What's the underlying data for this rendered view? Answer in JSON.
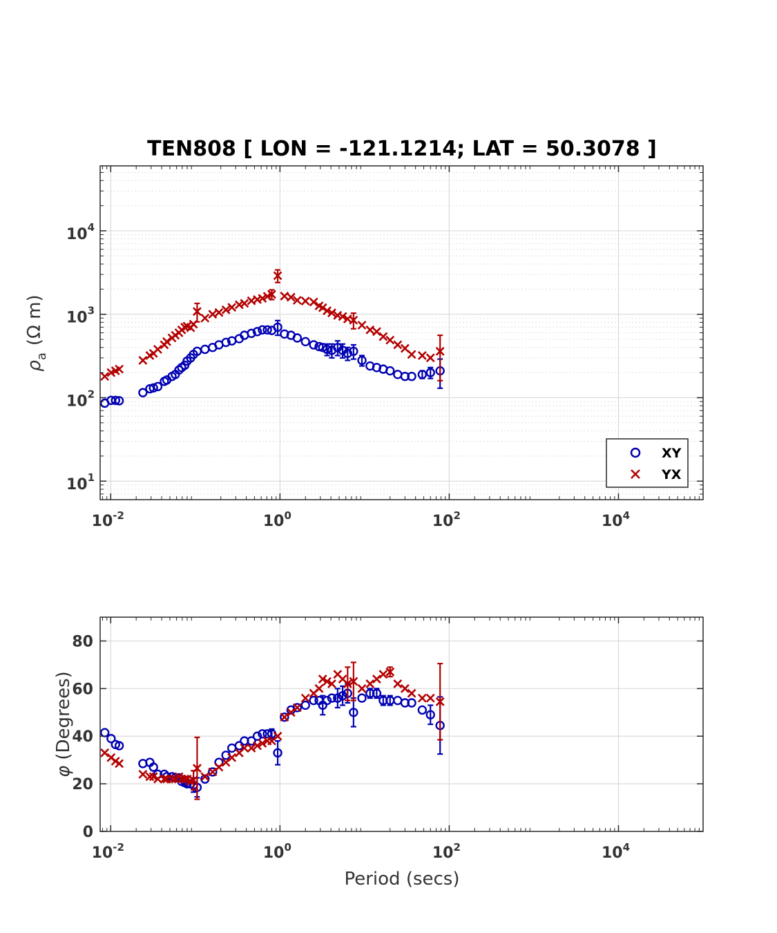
{
  "figure_title": "TEN808 [ LON = -121.1214; LAT = 50.3078 ]",
  "colors": {
    "xy": "#0000b3",
    "yx": "#b30000",
    "grid": "#d9d9d9",
    "axis": "#262626"
  },
  "chart_data": [
    {
      "type": "scatter",
      "name": "apparent-resistivity",
      "xscale": "log",
      "yscale": "log",
      "xlim": [
        0.0075,
        100000
      ],
      "ylim": [
        6,
        60000
      ],
      "xticks": [
        0.01,
        1,
        100,
        10000
      ],
      "xtick_labels": [
        {
          "base": "10",
          "exp": "-2"
        },
        {
          "base": "10",
          "exp": "0"
        },
        {
          "base": "10",
          "exp": "2"
        },
        {
          "base": "10",
          "exp": "4"
        }
      ],
      "yticks": [
        10,
        100,
        1000,
        10000
      ],
      "ytick_labels": [
        {
          "base": "10",
          "exp": "1"
        },
        {
          "base": "10",
          "exp": "2"
        },
        {
          "base": "10",
          "exp": "3"
        },
        {
          "base": "10",
          "exp": "4"
        }
      ],
      "ylabel": {
        "main": "ρ",
        "sub": "a",
        "unit": "(Ω m)"
      },
      "xlabel": "",
      "grid": true,
      "minor_grid": true,
      "legend": {
        "position": "bottom-right",
        "entries": [
          "XY",
          "YX"
        ]
      },
      "series": [
        {
          "name": "XY",
          "marker": "circle",
          "color": "#0000b3",
          "x": [
            0.0085,
            0.0101,
            0.0114,
            0.0126,
            0.024,
            0.029,
            0.032,
            0.036,
            0.043,
            0.046,
            0.053,
            0.058,
            0.064,
            0.069,
            0.075,
            0.08,
            0.088,
            0.095,
            0.105,
            0.13,
            0.16,
            0.19,
            0.23,
            0.27,
            0.33,
            0.38,
            0.46,
            0.54,
            0.62,
            0.71,
            0.8,
            0.94,
            1.13,
            1.35,
            1.6,
            2.0,
            2.5,
            2.9,
            3.2,
            3.6,
            4.1,
            4.8,
            5.5,
            6.3,
            7.4,
            9.3,
            11.6,
            13.9,
            16.6,
            20.0,
            24.6,
            30.0,
            36.0,
            48.0,
            60.0,
            78.0
          ],
          "y": [
            86,
            93,
            93,
            92,
            115,
            128,
            131,
            136,
            157,
            163,
            180,
            190,
            215,
            230,
            245,
            275,
            300,
            330,
            360,
            380,
            400,
            430,
            460,
            480,
            510,
            560,
            590,
            620,
            650,
            650,
            640,
            700,
            580,
            560,
            520,
            470,
            430,
            410,
            400,
            380,
            370,
            400,
            370,
            340,
            360,
            280,
            240,
            230,
            220,
            210,
            190,
            180,
            180,
            190,
            200,
            210
          ],
          "err_lo": [
            0,
            0,
            0,
            0,
            0,
            0,
            0,
            0,
            0,
            0,
            0,
            0,
            0,
            0,
            0,
            0,
            0,
            0,
            0,
            0,
            0,
            0,
            0,
            0,
            0,
            0,
            0,
            0,
            0,
            0,
            0,
            140,
            0,
            0,
            0,
            0,
            0,
            0,
            0,
            60,
            70,
            80,
            70,
            60,
            70,
            40,
            0,
            0,
            0,
            0,
            0,
            0,
            0,
            20,
            30,
            80
          ],
          "err_hi": [
            0,
            0,
            0,
            0,
            0,
            0,
            0,
            0,
            0,
            0,
            0,
            0,
            0,
            0,
            0,
            0,
            0,
            0,
            0,
            0,
            0,
            0,
            0,
            0,
            0,
            0,
            0,
            0,
            0,
            0,
            0,
            140,
            0,
            0,
            0,
            0,
            0,
            0,
            0,
            60,
            70,
            80,
            70,
            60,
            70,
            40,
            0,
            0,
            0,
            0,
            0,
            0,
            0,
            20,
            30,
            80
          ]
        },
        {
          "name": "YX",
          "marker": "x",
          "color": "#b30000",
          "x": [
            0.0085,
            0.0101,
            0.0114,
            0.0126,
            0.024,
            0.029,
            0.032,
            0.036,
            0.043,
            0.046,
            0.053,
            0.058,
            0.064,
            0.069,
            0.075,
            0.08,
            0.088,
            0.095,
            0.105,
            0.13,
            0.16,
            0.19,
            0.23,
            0.27,
            0.33,
            0.38,
            0.46,
            0.54,
            0.62,
            0.71,
            0.8,
            0.94,
            1.13,
            1.35,
            1.6,
            2.0,
            2.5,
            2.9,
            3.2,
            3.6,
            4.1,
            4.8,
            5.5,
            6.3,
            7.4,
            9.3,
            11.6,
            13.9,
            16.6,
            20.0,
            24.6,
            30.0,
            36.0,
            48.0,
            60.0,
            78.0
          ],
          "y": [
            180,
            200,
            210,
            220,
            280,
            320,
            340,
            380,
            430,
            470,
            520,
            560,
            600,
            650,
            700,
            720,
            690,
            760,
            1080,
            900,
            1000,
            1050,
            1130,
            1210,
            1300,
            1350,
            1450,
            1500,
            1550,
            1640,
            1730,
            2900,
            1650,
            1600,
            1470,
            1440,
            1400,
            1260,
            1200,
            1100,
            1040,
            970,
            940,
            880,
            850,
            740,
            650,
            620,
            540,
            490,
            430,
            390,
            330,
            320,
            300,
            360
          ],
          "err_lo": [
            0,
            0,
            0,
            0,
            0,
            0,
            0,
            0,
            0,
            0,
            0,
            0,
            0,
            0,
            0,
            0,
            0,
            0,
            270,
            0,
            0,
            0,
            0,
            0,
            0,
            0,
            0,
            0,
            0,
            0,
            230,
            500,
            0,
            0,
            0,
            0,
            0,
            0,
            0,
            0,
            0,
            0,
            0,
            0,
            180,
            0,
            0,
            0,
            0,
            0,
            0,
            0,
            0,
            0,
            0,
            200
          ],
          "err_hi": [
            0,
            0,
            0,
            0,
            0,
            0,
            0,
            0,
            0,
            0,
            0,
            0,
            0,
            0,
            0,
            0,
            0,
            0,
            270,
            0,
            0,
            0,
            0,
            0,
            0,
            0,
            0,
            0,
            0,
            0,
            230,
            500,
            0,
            0,
            0,
            0,
            0,
            0,
            0,
            0,
            0,
            0,
            0,
            0,
            180,
            0,
            0,
            0,
            0,
            0,
            0,
            0,
            0,
            0,
            0,
            200
          ]
        }
      ]
    },
    {
      "type": "scatter",
      "name": "phase",
      "xscale": "log",
      "yscale": "linear",
      "xlim": [
        0.0075,
        100000
      ],
      "ylim": [
        0,
        90
      ],
      "xticks": [
        0.01,
        1,
        100,
        10000
      ],
      "xtick_labels": [
        {
          "base": "10",
          "exp": "-2"
        },
        {
          "base": "10",
          "exp": "0"
        },
        {
          "base": "10",
          "exp": "2"
        },
        {
          "base": "10",
          "exp": "4"
        }
      ],
      "yticks": [
        0,
        20,
        40,
        60,
        80
      ],
      "ytick_labels": [
        "0",
        "20",
        "40",
        "60",
        "80"
      ],
      "ylabel": {
        "symbol": "φ",
        "text": "(Degrees)"
      },
      "xlabel": "Period (secs)",
      "grid": true,
      "minor_grid": false,
      "series": [
        {
          "name": "XY",
          "marker": "circle",
          "color": "#0000b3",
          "x": [
            0.0085,
            0.0101,
            0.0114,
            0.0126,
            0.024,
            0.029,
            0.032,
            0.036,
            0.043,
            0.046,
            0.053,
            0.058,
            0.064,
            0.069,
            0.075,
            0.08,
            0.088,
            0.095,
            0.105,
            0.13,
            0.16,
            0.19,
            0.23,
            0.27,
            0.33,
            0.38,
            0.46,
            0.54,
            0.62,
            0.71,
            0.8,
            0.94,
            1.13,
            1.35,
            1.6,
            2.0,
            2.5,
            2.9,
            3.2,
            3.6,
            4.1,
            4.8,
            5.5,
            6.3,
            7.4,
            9.3,
            11.6,
            13.9,
            16.6,
            20.0,
            24.6,
            30.0,
            36.0,
            48.0,
            60.0,
            78.0
          ],
          "y": [
            41.5,
            39,
            36.5,
            36,
            28.5,
            29,
            27,
            24,
            24,
            23,
            23,
            22.5,
            22.5,
            21,
            21,
            20,
            20,
            19.5,
            18.5,
            22,
            25,
            29,
            32,
            35,
            36,
            38,
            38,
            40,
            41,
            41,
            41,
            33,
            48,
            51,
            52,
            53,
            55,
            55,
            53,
            55,
            56,
            56,
            57,
            58,
            50,
            56,
            58,
            58,
            55,
            55,
            55,
            54,
            54,
            51,
            49,
            44.5
          ],
          "err_lo": [
            0,
            0,
            0,
            0,
            0,
            0,
            0,
            0,
            0,
            0,
            0,
            0,
            0,
            0,
            2,
            0,
            0,
            3,
            4,
            0,
            0,
            0,
            0,
            0,
            0,
            0,
            0,
            0,
            0,
            0,
            2,
            5,
            0,
            0,
            0,
            0,
            0,
            0,
            4,
            0,
            0,
            4,
            4,
            4,
            6,
            0,
            2,
            2,
            2,
            2,
            0,
            0,
            0,
            0,
            4,
            12
          ],
          "err_hi": [
            0,
            0,
            0,
            0,
            0,
            0,
            0,
            0,
            0,
            0,
            0,
            0,
            0,
            0,
            2,
            0,
            0,
            3,
            4,
            0,
            0,
            0,
            0,
            0,
            0,
            0,
            0,
            0,
            0,
            0,
            2,
            5,
            0,
            0,
            0,
            0,
            0,
            0,
            4,
            0,
            0,
            4,
            4,
            4,
            6,
            0,
            2,
            2,
            2,
            2,
            0,
            0,
            0,
            0,
            4,
            12
          ]
        },
        {
          "name": "YX",
          "marker": "x",
          "color": "#b30000",
          "x": [
            0.0085,
            0.0101,
            0.0114,
            0.0126,
            0.024,
            0.029,
            0.032,
            0.036,
            0.043,
            0.046,
            0.053,
            0.058,
            0.064,
            0.069,
            0.075,
            0.08,
            0.088,
            0.095,
            0.105,
            0.13,
            0.16,
            0.19,
            0.23,
            0.27,
            0.33,
            0.38,
            0.46,
            0.54,
            0.62,
            0.71,
            0.8,
            0.94,
            1.13,
            1.35,
            1.6,
            2.0,
            2.5,
            2.9,
            3.2,
            3.6,
            4.1,
            4.8,
            5.5,
            6.3,
            7.4,
            9.3,
            11.6,
            13.9,
            16.6,
            20.0,
            24.6,
            30.0,
            36.0,
            48.0,
            60.0,
            78.0
          ],
          "y": [
            33,
            31,
            29.5,
            28.5,
            24,
            23,
            23,
            22,
            22,
            22,
            22,
            22,
            23,
            22,
            22,
            22,
            21,
            21.5,
            26.5,
            23,
            25,
            27,
            29,
            31,
            33,
            35,
            35,
            36,
            37,
            38,
            38,
            40,
            48,
            50,
            52,
            56,
            58,
            60,
            64,
            63,
            62,
            66,
            64,
            62,
            63,
            60,
            62,
            64,
            66,
            67,
            62,
            60,
            58,
            56,
            56,
            54.5
          ],
          "err_lo": [
            0,
            0,
            0,
            0,
            0,
            0,
            0,
            0,
            0,
            0,
            0,
            0,
            0,
            0,
            0,
            0,
            0,
            4,
            13,
            0,
            0,
            0,
            0,
            0,
            0,
            0,
            0,
            0,
            0,
            0,
            0,
            0,
            0,
            0,
            0,
            0,
            0,
            0,
            0,
            0,
            0,
            0,
            0,
            7,
            8,
            0,
            0,
            0,
            0,
            2,
            0,
            0,
            0,
            0,
            0,
            16
          ],
          "err_hi": [
            0,
            0,
            0,
            0,
            0,
            0,
            0,
            0,
            0,
            0,
            0,
            0,
            0,
            0,
            0,
            0,
            0,
            4,
            13,
            0,
            0,
            0,
            0,
            0,
            0,
            0,
            0,
            0,
            0,
            0,
            0,
            0,
            0,
            0,
            0,
            0,
            0,
            0,
            0,
            0,
            0,
            0,
            0,
            7,
            8,
            0,
            0,
            0,
            0,
            2,
            0,
            0,
            0,
            0,
            0,
            16
          ]
        }
      ]
    }
  ]
}
